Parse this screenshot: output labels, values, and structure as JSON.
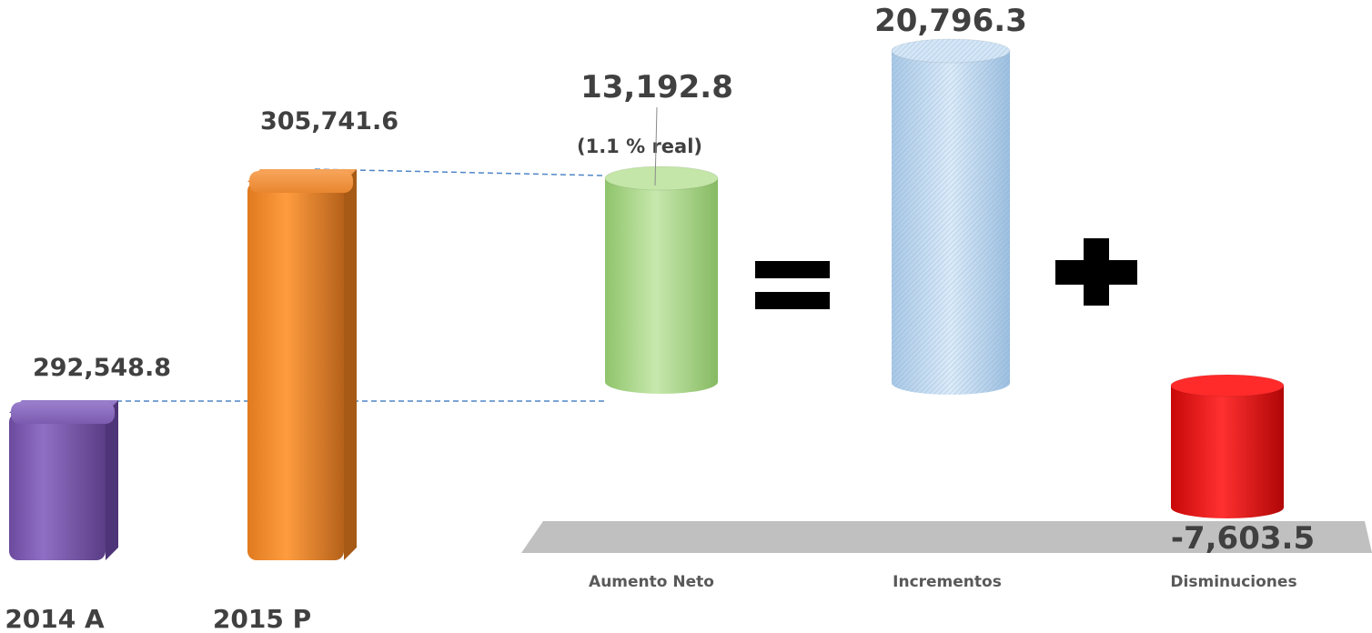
{
  "chart_data": [
    {
      "type": "bar",
      "categories": [
        "2014 A",
        "2015 P"
      ],
      "values": [
        292548.8,
        305741.6
      ],
      "data_labels": [
        "292,548.8",
        "305,741.6"
      ],
      "colors": [
        "#7B5BB0",
        "#F08A2E"
      ]
    },
    {
      "type": "bar",
      "categories": [
        "Aumento Neto",
        "Incrementos",
        "Disminuciones"
      ],
      "values": [
        13192.8,
        20796.3,
        -7603.5
      ],
      "data_labels": [
        "13,192.8",
        "20,796.3",
        "-7,603.5"
      ],
      "annotation": "(1.1 % real)",
      "operators": [
        "=",
        "+"
      ],
      "colors": [
        "#A8D58A",
        "#BFD7EE",
        "#E81010"
      ]
    }
  ]
}
